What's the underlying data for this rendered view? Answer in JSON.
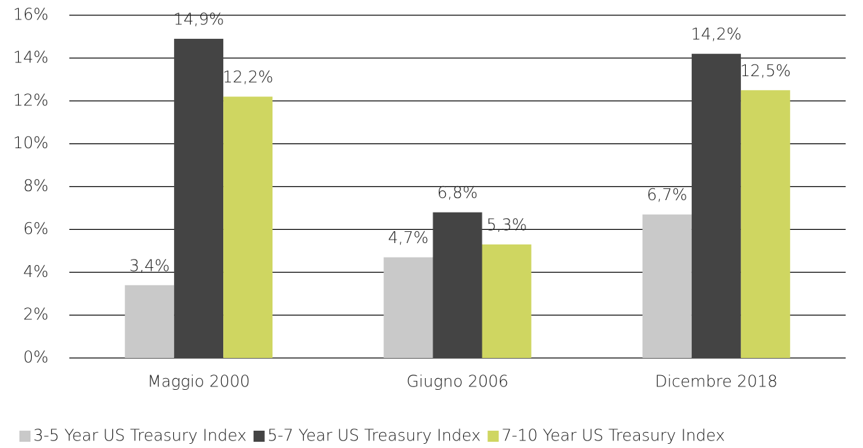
{
  "chart_data": {
    "type": "bar",
    "categories": [
      "Maggio 2000",
      "Giugno 2006",
      "Dicembre 2018"
    ],
    "series": [
      {
        "name": "3-5 Year US Treasury Index",
        "color": "#c9c9c9",
        "values": [
          3.4,
          4.7,
          6.7
        ],
        "value_labels": [
          "3,4%",
          "4,7%",
          "6,7%"
        ]
      },
      {
        "name": "5-7 Year US Treasury Index",
        "color": "#444444",
        "values": [
          14.9,
          6.8,
          14.2
        ],
        "value_labels": [
          "14,9%",
          "6,8%",
          "14,2%"
        ]
      },
      {
        "name": "7-10 Year US Treasury Index",
        "color": "#cfd661",
        "values": [
          12.2,
          5.3,
          12.5
        ],
        "value_labels": [
          "12,2%",
          "5,3%",
          "12,5%"
        ]
      }
    ],
    "ylim": [
      0,
      16
    ],
    "yticks": [
      {
        "value": 0,
        "label": "0%"
      },
      {
        "value": 2,
        "label": "2%"
      },
      {
        "value": 4,
        "label": "4%"
      },
      {
        "value": 6,
        "label": "6%"
      },
      {
        "value": 8,
        "label": "8%"
      },
      {
        "value": 10,
        "label": "10%"
      },
      {
        "value": 12,
        "label": "12%"
      },
      {
        "value": 14,
        "label": "14%"
      },
      {
        "value": 16,
        "label": "16%"
      }
    ],
    "grid": true,
    "legend": "bottom"
  }
}
